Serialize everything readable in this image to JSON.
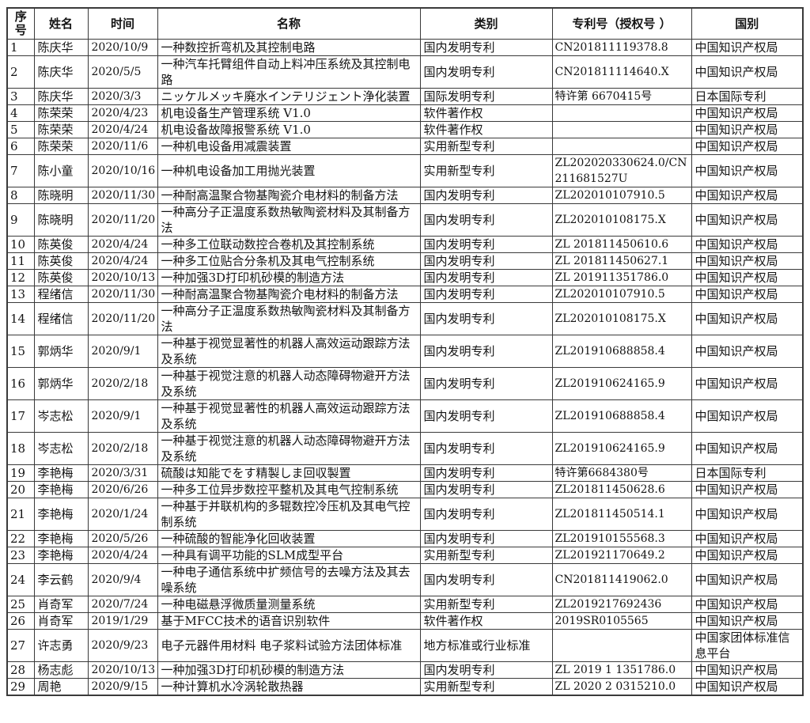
{
  "table": {
    "columns": [
      {
        "key": "no",
        "label": "序号"
      },
      {
        "key": "name",
        "label": "姓名"
      },
      {
        "key": "date",
        "label": "时间"
      },
      {
        "key": "title",
        "label": "名称"
      },
      {
        "key": "category",
        "label": "类别"
      },
      {
        "key": "patent_no",
        "label": "专利号（授权号 ）"
      },
      {
        "key": "country",
        "label": "国别"
      }
    ],
    "rows": [
      {
        "no": "1",
        "name": "陈庆华",
        "date": "2020/10/9",
        "title": "一种数控折弯机及其控制电路",
        "category": "国内发明专利",
        "patent_no": "CN201811119378.8",
        "country": "中国知识产权局"
      },
      {
        "no": "2",
        "name": "陈庆华",
        "date": "2020/5/5",
        "title": "一种汽车托臂组件自动上料冲压系统及其控制电路",
        "category": "国内发明专利",
        "patent_no": "CN201811114640.X",
        "country": "中国知识产权局"
      },
      {
        "no": "3",
        "name": "陈庆华",
        "date": "2020/3/3",
        "title": "ニッケルメッキ廃水インテリジェント浄化装置",
        "category": "国际发明专利",
        "patent_no": "特许第 6670415号",
        "country": "日本国际专利"
      },
      {
        "no": "4",
        "name": "陈荣荣",
        "date": "2020/4/23",
        "title": "机电设备生产管理系统 V1.0",
        "category": "软件著作权",
        "patent_no": "",
        "country": "中国知识产权局"
      },
      {
        "no": "5",
        "name": "陈荣荣",
        "date": "2020/4/24",
        "title": "机电设备故障报警系统 V1.0",
        "category": "软件著作权",
        "patent_no": "",
        "country": "中国知识产权局"
      },
      {
        "no": "6",
        "name": "陈荣荣",
        "date": "2020/11/6",
        "title": "一种机电设备用减震装置",
        "category": "实用新型专利",
        "patent_no": "",
        "country": "中国知识产权局"
      },
      {
        "no": "7",
        "name": "陈小童",
        "date": "2020/10/16",
        "title": "一种机电设备加工用抛光装置",
        "category": "实用新型专利",
        "patent_no": "ZL202020330624.0/CN211681527U",
        "country": "中国知识产权局"
      },
      {
        "no": "8",
        "name": "陈晓明",
        "date": "2020/11/30",
        "title": "一种耐高温聚合物基陶瓷介电材料的制备方法",
        "category": "国内发明专利",
        "patent_no": "ZL202010107910.5",
        "country": "中国知识产权局"
      },
      {
        "no": "9",
        "name": "陈晓明",
        "date": "2020/11/20",
        "title": "一种高分子正温度系数热敏陶瓷材料及其制备方法",
        "category": "国内发明专利",
        "patent_no": "ZL202010108175.X",
        "country": "中国知识产权局"
      },
      {
        "no": "10",
        "name": "陈英俊",
        "date": "2020/4/24",
        "title": "一种多工位联动数控合卷机及其控制系统",
        "category": "国内发明专利",
        "patent_no": "ZL 201811450610.6",
        "country": "中国知识产权局"
      },
      {
        "no": "11",
        "name": "陈英俊",
        "date": "2020/4/24",
        "title": "一种多工位贴合分条机及其电气控制系统",
        "category": "国内发明专利",
        "patent_no": "ZL 201811450627.1",
        "country": "中国知识产权局"
      },
      {
        "no": "12",
        "name": "陈英俊",
        "date": "2020/10/13",
        "title": "一种加强3D打印机砂模的制造方法",
        "category": "国内发明专利",
        "patent_no": "ZL 201911351786.0",
        "country": "中国知识产权局"
      },
      {
        "no": "13",
        "name": "程绪信",
        "date": "2020/11/30",
        "title": "一种耐高温聚合物基陶瓷介电材料的制备方法",
        "category": "国内发明专利",
        "patent_no": "ZL202010107910.5",
        "country": "中国知识产权局"
      },
      {
        "no": "14",
        "name": "程绪信",
        "date": "2020/11/20",
        "title": "一种高分子正温度系数热敏陶瓷材料及其制备方法",
        "category": "国内发明专利",
        "patent_no": "ZL202010108175.X",
        "country": "中国知识产权局"
      },
      {
        "no": "15",
        "name": "郭炳华",
        "date": "2020/9/1",
        "title": "一种基于视觉显著性的机器人高效运动跟踪方法及系统",
        "category": "国内发明专利",
        "patent_no": "ZL201910688858.4",
        "country": "中国知识产权局"
      },
      {
        "no": "16",
        "name": "郭炳华",
        "date": "2020/2/18",
        "title": "一种基于视觉注意的机器人动态障碍物避开方法及系统",
        "category": "国内发明专利",
        "patent_no": "ZL201910624165.9",
        "country": "中国知识产权局"
      },
      {
        "no": "17",
        "name": "岑志松",
        "date": "2020/9/1",
        "title": "一种基于视觉显著性的机器人高效运动跟踪方法及系统",
        "category": "国内发明专利",
        "patent_no": "ZL201910688858.4",
        "country": "中国知识产权局"
      },
      {
        "no": "18",
        "name": "岑志松",
        "date": "2020/2/18",
        "title": "一种基于视觉注意的机器人动态障碍物避开方法及系统",
        "category": "国内发明专利",
        "patent_no": "ZL201910624165.9",
        "country": "中国知识产权局"
      },
      {
        "no": "19",
        "name": "李艳梅",
        "date": "2020/3/31",
        "title": "硫酸は知能でをす精製しま回収製置",
        "category": "国内发明专利",
        "patent_no": "特许第6684380号",
        "country": "日本国际专利"
      },
      {
        "no": "20",
        "name": "李艳梅",
        "date": "2020/6/26",
        "title": "一种多工位异步数控平整机及其电气控制系统",
        "category": "国内发明专利",
        "patent_no": "ZL201811450628.6",
        "country": "中国知识产权局"
      },
      {
        "no": "21",
        "name": "李艳梅",
        "date": "2020/1/24",
        "title": "一种基于并联机构的多辊数控冷压机及其电气控制系统",
        "category": "国内发明专利",
        "patent_no": "ZL201811450514.1",
        "country": "中国知识产权局"
      },
      {
        "no": "22",
        "name": "李艳梅",
        "date": "2020/5/26",
        "title": "一种硫酸的智能净化回收装置",
        "category": "国内发明专利",
        "patent_no": "ZL201910155568.3",
        "country": "中国知识产权局"
      },
      {
        "no": "23",
        "name": "李艳梅",
        "date": "2020/4/24",
        "title": "一种具有调平功能的SLM成型平台",
        "category": "实用新型专利",
        "patent_no": "ZL201921170649.2",
        "country": "中国知识产权局"
      },
      {
        "no": "24",
        "name": "李云鹤",
        "date": "2020/9/4",
        "title": "一种电子通信系统中扩频信号的去噪方法及其去噪系统",
        "category": "国内发明专利",
        "patent_no": "CN201811419062.0",
        "country": "中国知识产权局"
      },
      {
        "no": "25",
        "name": "肖奇军",
        "date": "2020/7/24",
        "title": "一种电磁悬浮微质量测量系统",
        "category": "实用新型专利",
        "patent_no": "ZL2019217692436",
        "country": "中国知识产权局"
      },
      {
        "no": "26",
        "name": "肖奇军",
        "date": "2019/1/29",
        "title": "基于MFCC技术的语音识别软件",
        "category": "软件著作权",
        "patent_no": "2019SR0105565",
        "country": "中国知识产权局"
      },
      {
        "no": "27",
        "name": "许志勇",
        "date": "2020/9/23",
        "title": "电子元器件用材料 电子浆料试验方法团体标准",
        "category": "地方标准或行业标准",
        "patent_no": "",
        "country": "中国家团体标准信息平台"
      },
      {
        "no": "28",
        "name": "杨志彪",
        "date": "2020/10/13",
        "title": "一种加强3D打印机砂模的制造方法",
        "category": "国内发明专利",
        "patent_no": "ZL 2019 1 1351786.0",
        "country": "中国知识产权局"
      },
      {
        "no": "29",
        "name": "周艳",
        "date": "2020/9/15",
        "title": "一种计算机水冷涡轮散热器",
        "category": "实用新型专利",
        "patent_no": "ZL 2020 2 0315210.0",
        "country": "中国知识产权局"
      }
    ]
  }
}
